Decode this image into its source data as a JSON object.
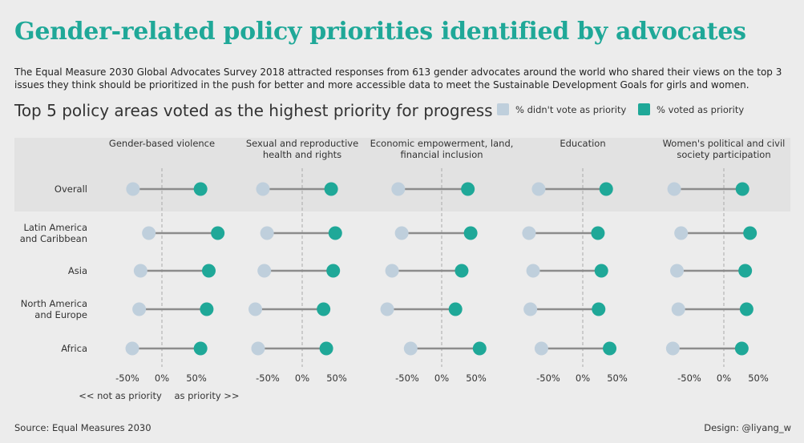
{
  "title": "Gender-related policy priorities identified by advocates",
  "description": "The Equal Measure 2030 Global Advocates Survey 2018 attracted responses from 613 gender advocates around the world who shared their views on the top 3 issues they think should be prioritized in the push for better and more accessible data to meet the Sustainable Development Goals for girls and women.",
  "subtitle": "Top 5 policy areas voted as the highest priority for progress",
  "legend": {
    "not_priority": "% didn't vote as priority",
    "priority": "% voted as priority"
  },
  "colors": {
    "not_priority": "#bfcfdc",
    "priority": "#1fa898",
    "line": "#8c8c8c",
    "zero_line": "#aaaaaa",
    "band": "#e2e2e2"
  },
  "footer": {
    "source": "Source: Equal Measures 2030",
    "design": "Design: @liyang_w"
  },
  "axis_note": {
    "left": "<< not as priority",
    "right": "as priority >>"
  },
  "chart_data": {
    "type": "dot-plot",
    "x_ticks": [
      "-50%",
      "0%",
      "50%"
    ],
    "xlim": [
      -100,
      100
    ],
    "regions": [
      "Overall",
      "Latin America\nand Caribbean",
      "Asia",
      "North America\nand Europe",
      "Africa"
    ],
    "panels": [
      {
        "title": "Gender-based violence",
        "not_priority": [
          -42,
          -19,
          -31,
          -33,
          -43
        ],
        "priority": [
          56,
          81,
          68,
          65,
          56
        ]
      },
      {
        "title": "Sexual and reproductive\nhealth and rights",
        "not_priority": [
          -57,
          -51,
          -55,
          -68,
          -64
        ],
        "priority": [
          42,
          48,
          45,
          31,
          35
        ]
      },
      {
        "title": "Economic empowerment, land,\nfinancial inclusion",
        "not_priority": [
          -63,
          -58,
          -72,
          -79,
          -45
        ],
        "priority": [
          38,
          42,
          29,
          20,
          55
        ]
      },
      {
        "title": "Education",
        "not_priority": [
          -64,
          -78,
          -72,
          -76,
          -60
        ],
        "priority": [
          34,
          22,
          27,
          23,
          39
        ]
      },
      {
        "title": "Women's political and civil\nsociety participation",
        "not_priority": [
          -72,
          -62,
          -68,
          -66,
          -74
        ],
        "priority": [
          27,
          38,
          31,
          33,
          26
        ]
      }
    ]
  }
}
